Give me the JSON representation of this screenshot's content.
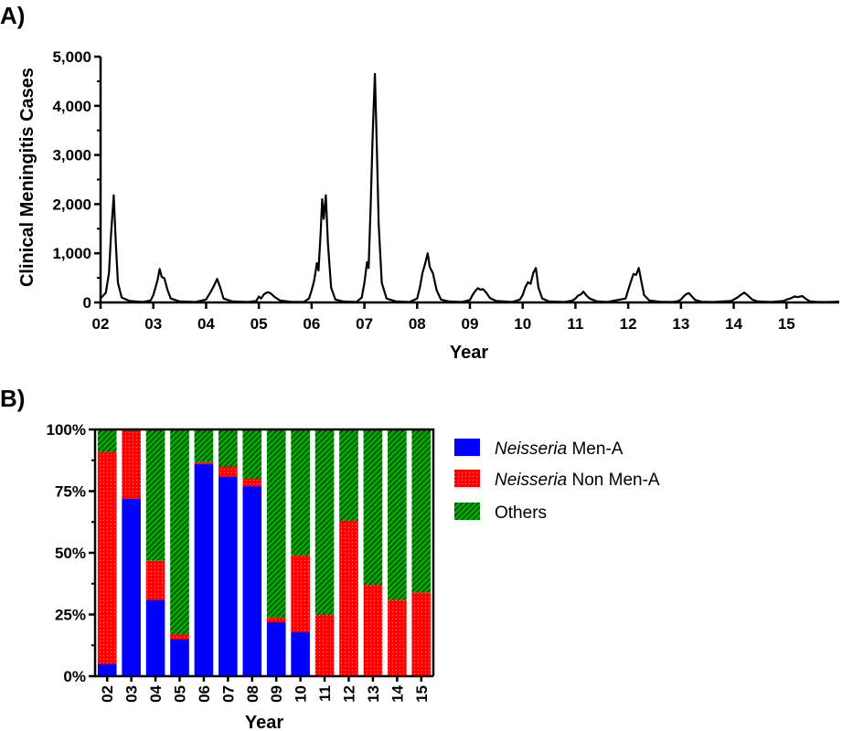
{
  "chart_data": [
    {
      "panel_label": "A)",
      "type": "line",
      "xlabel": "Year",
      "ylabel": "Clinical Meningitis Cases",
      "ylim": [
        0,
        5000
      ],
      "y_ticks": [
        "0",
        "1,000",
        "2,000",
        "3,000",
        "4,000",
        "5,000"
      ],
      "x_ticks": [
        "02",
        "03",
        "04",
        "05",
        "06",
        "07",
        "08",
        "09",
        "10",
        "11",
        "12",
        "13",
        "14",
        "15"
      ],
      "xlim": [
        2002,
        2016
      ],
      "grid": false,
      "series": [
        {
          "color": "#000000",
          "points": [
            [
              2002.0,
              80
            ],
            [
              2002.1,
              200
            ],
            [
              2002.16,
              600
            ],
            [
              2002.2,
              1400
            ],
            [
              2002.25,
              2180
            ],
            [
              2002.29,
              1200
            ],
            [
              2002.33,
              400
            ],
            [
              2002.4,
              100
            ],
            [
              2002.55,
              30
            ],
            [
              2002.8,
              10
            ],
            [
              2002.95,
              40
            ],
            [
              2003.0,
              150
            ],
            [
              2003.08,
              450
            ],
            [
              2003.12,
              680
            ],
            [
              2003.16,
              520
            ],
            [
              2003.21,
              490
            ],
            [
              2003.27,
              250
            ],
            [
              2003.33,
              80
            ],
            [
              2003.5,
              20
            ],
            [
              2003.8,
              10
            ],
            [
              2004.0,
              60
            ],
            [
              2004.08,
              200
            ],
            [
              2004.15,
              340
            ],
            [
              2004.21,
              480
            ],
            [
              2004.27,
              300
            ],
            [
              2004.33,
              80
            ],
            [
              2004.5,
              20
            ],
            [
              2004.8,
              10
            ],
            [
              2004.95,
              30
            ],
            [
              2005.0,
              120
            ],
            [
              2005.04,
              80
            ],
            [
              2005.1,
              170
            ],
            [
              2005.17,
              210
            ],
            [
              2005.23,
              180
            ],
            [
              2005.3,
              110
            ],
            [
              2005.4,
              40
            ],
            [
              2005.6,
              15
            ],
            [
              2005.85,
              10
            ],
            [
              2005.95,
              80
            ],
            [
              2006.0,
              250
            ],
            [
              2006.05,
              450
            ],
            [
              2006.1,
              800
            ],
            [
              2006.13,
              650
            ],
            [
              2006.17,
              1400
            ],
            [
              2006.2,
              2100
            ],
            [
              2006.23,
              1700
            ],
            [
              2006.27,
              2180
            ],
            [
              2006.31,
              1200
            ],
            [
              2006.37,
              300
            ],
            [
              2006.45,
              60
            ],
            [
              2006.6,
              20
            ],
            [
              2006.85,
              10
            ],
            [
              2006.95,
              100
            ],
            [
              2007.0,
              400
            ],
            [
              2007.05,
              820
            ],
            [
              2007.08,
              700
            ],
            [
              2007.12,
              2000
            ],
            [
              2007.16,
              3500
            ],
            [
              2007.2,
              4650
            ],
            [
              2007.24,
              3000
            ],
            [
              2007.27,
              1600
            ],
            [
              2007.33,
              400
            ],
            [
              2007.42,
              80
            ],
            [
              2007.6,
              20
            ],
            [
              2007.85,
              10
            ],
            [
              2008.0,
              80
            ],
            [
              2008.05,
              300
            ],
            [
              2008.1,
              600
            ],
            [
              2008.15,
              780
            ],
            [
              2008.2,
              1000
            ],
            [
              2008.24,
              720
            ],
            [
              2008.3,
              590
            ],
            [
              2008.37,
              250
            ],
            [
              2008.45,
              60
            ],
            [
              2008.6,
              20
            ],
            [
              2008.85,
              10
            ],
            [
              2009.0,
              50
            ],
            [
              2009.05,
              150
            ],
            [
              2009.1,
              230
            ],
            [
              2009.15,
              290
            ],
            [
              2009.2,
              260
            ],
            [
              2009.25,
              270
            ],
            [
              2009.31,
              200
            ],
            [
              2009.38,
              90
            ],
            [
              2009.5,
              30
            ],
            [
              2009.8,
              10
            ],
            [
              2009.95,
              60
            ],
            [
              2010.0,
              150
            ],
            [
              2010.05,
              310
            ],
            [
              2010.1,
              410
            ],
            [
              2010.15,
              380
            ],
            [
              2010.2,
              600
            ],
            [
              2010.25,
              700
            ],
            [
              2010.3,
              300
            ],
            [
              2010.37,
              80
            ],
            [
              2010.5,
              20
            ],
            [
              2010.8,
              10
            ],
            [
              2010.95,
              40
            ],
            [
              2011.0,
              80
            ],
            [
              2011.05,
              140
            ],
            [
              2011.1,
              160
            ],
            [
              2011.15,
              220
            ],
            [
              2011.2,
              150
            ],
            [
              2011.27,
              80
            ],
            [
              2011.4,
              25
            ],
            [
              2011.6,
              10
            ],
            [
              2011.95,
              80
            ],
            [
              2012.0,
              250
            ],
            [
              2012.05,
              420
            ],
            [
              2012.1,
              580
            ],
            [
              2012.15,
              560
            ],
            [
              2012.2,
              700
            ],
            [
              2012.24,
              480
            ],
            [
              2012.3,
              150
            ],
            [
              2012.4,
              40
            ],
            [
              2012.6,
              15
            ],
            [
              2012.85,
              10
            ],
            [
              2012.95,
              30
            ],
            [
              2013.0,
              60
            ],
            [
              2013.05,
              120
            ],
            [
              2013.1,
              170
            ],
            [
              2013.15,
              190
            ],
            [
              2013.2,
              130
            ],
            [
              2013.27,
              50
            ],
            [
              2013.4,
              15
            ],
            [
              2013.6,
              10
            ],
            [
              2013.95,
              30
            ],
            [
              2014.0,
              60
            ],
            [
              2014.07,
              100
            ],
            [
              2014.13,
              150
            ],
            [
              2014.2,
              200
            ],
            [
              2014.27,
              140
            ],
            [
              2014.35,
              60
            ],
            [
              2014.45,
              20
            ],
            [
              2014.7,
              10
            ],
            [
              2014.95,
              30
            ],
            [
              2015.0,
              60
            ],
            [
              2015.07,
              80
            ],
            [
              2015.15,
              120
            ],
            [
              2015.22,
              110
            ],
            [
              2015.3,
              130
            ],
            [
              2015.37,
              70
            ],
            [
              2015.45,
              20
            ],
            [
              2015.6,
              10
            ],
            [
              2015.8,
              10
            ],
            [
              2015.95,
              15
            ],
            [
              2016.0,
              15
            ]
          ]
        }
      ]
    },
    {
      "panel_label": "B)",
      "type": "bar",
      "stacked": true,
      "xlabel": "Year",
      "categories": [
        "02",
        "03",
        "04",
        "05",
        "06",
        "07",
        "08",
        "09",
        "10",
        "11",
        "12",
        "13",
        "14",
        "15"
      ],
      "ylim": [
        0,
        100
      ],
      "y_ticks": [
        "0%",
        "25%",
        "50%",
        "75%",
        "100%"
      ],
      "legend_position": "right",
      "series": [
        {
          "name_italic": "Neisseria",
          "name_rest": " Men-A",
          "color": "#0000ff",
          "pattern": "solid",
          "values": [
            5,
            72,
            31,
            15,
            86,
            81,
            77,
            22,
            18,
            0,
            0,
            0,
            0,
            0
          ]
        },
        {
          "name_italic": "Neisseria",
          "name_rest": " Non Men-A",
          "color": "#ff0000",
          "pattern": "dots",
          "values": [
            86,
            28,
            16,
            2,
            1,
            4,
            3,
            2,
            31,
            25,
            63,
            37,
            31,
            34
          ]
        },
        {
          "name_italic": "",
          "name_rest": "Others",
          "color": "#00aa00",
          "pattern": "hatch",
          "values": [
            9,
            0,
            53,
            83,
            13,
            15,
            20,
            76,
            51,
            75,
            37,
            63,
            69,
            66
          ]
        }
      ]
    }
  ]
}
